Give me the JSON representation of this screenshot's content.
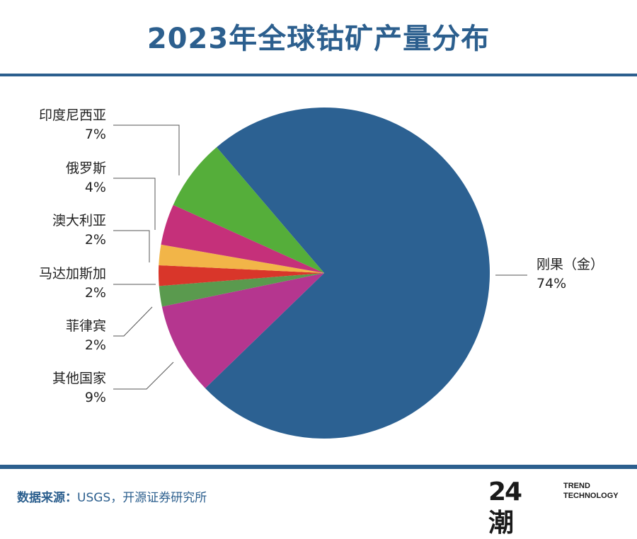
{
  "header": {
    "title": "2023年全球钴矿产量分布"
  },
  "footer": {
    "source_label": "数据来源：",
    "source_text": "USGS，开源证券研究所",
    "brand_logo": "24潮",
    "brand_line1": "TREND",
    "brand_line2": "TECHNOLOGY"
  },
  "colors": {
    "brand": "#2c5f8e"
  },
  "chart_data": {
    "type": "pie",
    "title": "2023年全球钴矿产量分布",
    "slices": [
      {
        "label": "刚果（金）",
        "value": 74,
        "value_label": "74%",
        "color": "#2c6192"
      },
      {
        "label": "其他国家",
        "value": 9,
        "value_label": "9%",
        "color": "#b5368f"
      },
      {
        "label": "菲律宾",
        "value": 2,
        "value_label": "2%",
        "color": "#5a9a4e"
      },
      {
        "label": "马达加斯加",
        "value": 2,
        "value_label": "2%",
        "color": "#d9362a"
      },
      {
        "label": "澳大利亚",
        "value": 2,
        "value_label": "2%",
        "color": "#f2b548"
      },
      {
        "label": "俄罗斯",
        "value": 4,
        "value_label": "4%",
        "color": "#c5307a"
      },
      {
        "label": "印度尼西亚",
        "value": 7,
        "value_label": "7%",
        "color": "#55ae3a"
      }
    ]
  }
}
